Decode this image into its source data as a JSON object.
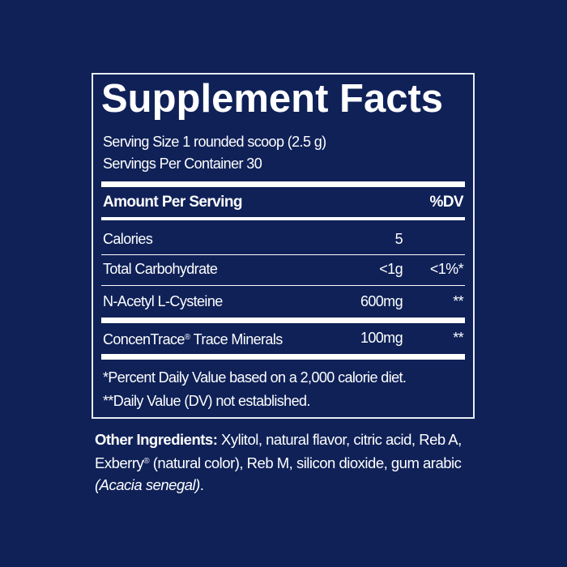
{
  "panel": {
    "title": "Supplement Facts",
    "serving_size": "Serving Size 1 rounded scoop (2.5 g)",
    "servings_per_container": "Servings Per Container 30",
    "header": {
      "amount": "Amount Per Serving",
      "dv": "%DV"
    },
    "rows": [
      {
        "name": "Calories",
        "amount": "5",
        "dv": ""
      },
      {
        "name": "Total Carbohydrate",
        "amount": "<1g",
        "dv": "<1%*"
      },
      {
        "name": "N-Acetyl L-Cysteine",
        "amount": "600mg",
        "dv": "**"
      },
      {
        "name": "ConcenTrace",
        "reg": "®",
        "name_suffix": " Trace Minerals",
        "amount": "100mg",
        "dv": "**"
      }
    ],
    "footnotes": [
      "*Percent Daily Value based on a 2,000 calorie diet.",
      "**Daily Value (DV) not established."
    ]
  },
  "other_ingredients": {
    "label": "Other Ingredients:",
    "text1": " Xylitol, natural flavor, citric acid, Reb A, Exberry",
    "reg": "®",
    "text2": " (natural color), Reb M, silicon dioxide, gum arabic ",
    "italic": "(Acacia senegal)",
    "end": "."
  },
  "colors": {
    "background": "#0f2157",
    "text": "#ffffff"
  }
}
